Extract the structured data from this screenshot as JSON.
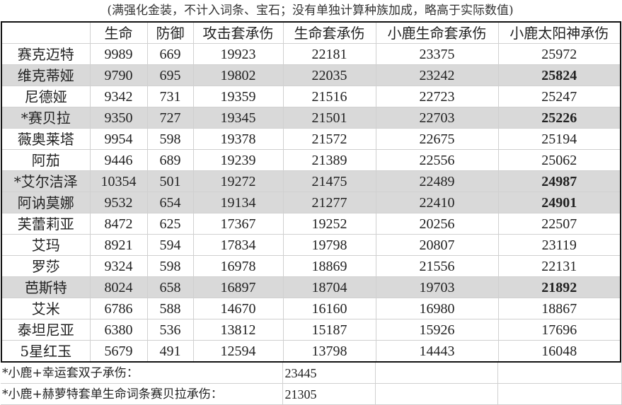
{
  "note": "(满强化金装，不计入词条、宝石；没有单独计算种族加成，略高于实际数值)",
  "headers": [
    "",
    "生命",
    "防御",
    "攻击套承伤",
    "生命套承伤",
    "小鹿生命套承伤",
    "小鹿太阳神承伤"
  ],
  "rows": [
    {
      "name": "赛克迈特",
      "hp": "9989",
      "def": "669",
      "atk_set": "19923",
      "hp_set": "22181",
      "deer_hp_set": "23375",
      "deer_sun": "25972",
      "highlight": false
    },
    {
      "name": "维克蒂娅",
      "hp": "9790",
      "def": "695",
      "atk_set": "19802",
      "hp_set": "22035",
      "deer_hp_set": "23242",
      "deer_sun": "25824",
      "highlight": true
    },
    {
      "name": "尼德娅",
      "hp": "9342",
      "def": "731",
      "atk_set": "19359",
      "hp_set": "21516",
      "deer_hp_set": "22723",
      "deer_sun": "25247",
      "highlight": false
    },
    {
      "name": "*赛贝拉",
      "hp": "9350",
      "def": "727",
      "atk_set": "19345",
      "hp_set": "21501",
      "deer_hp_set": "22703",
      "deer_sun": "25226",
      "highlight": true
    },
    {
      "name": "薇奥莱塔",
      "hp": "9954",
      "def": "598",
      "atk_set": "19378",
      "hp_set": "21572",
      "deer_hp_set": "22675",
      "deer_sun": "25194",
      "highlight": false
    },
    {
      "name": "阿茄",
      "hp": "9446",
      "def": "689",
      "atk_set": "19239",
      "hp_set": "21389",
      "deer_hp_set": "22556",
      "deer_sun": "25062",
      "highlight": false
    },
    {
      "name": "*艾尔洁泽",
      "hp": "10354",
      "def": "501",
      "atk_set": "19272",
      "hp_set": "21475",
      "deer_hp_set": "22489",
      "deer_sun": "24987",
      "highlight": true
    },
    {
      "name": "阿讷莫娜",
      "hp": "9532",
      "def": "654",
      "atk_set": "19134",
      "hp_set": "21277",
      "deer_hp_set": "22410",
      "deer_sun": "24901",
      "highlight": true
    },
    {
      "name": "芙蕾莉亚",
      "hp": "8472",
      "def": "625",
      "atk_set": "17367",
      "hp_set": "19252",
      "deer_hp_set": "20256",
      "deer_sun": "22507",
      "highlight": false
    },
    {
      "name": "艾玛",
      "hp": "8921",
      "def": "594",
      "atk_set": "17834",
      "hp_set": "19798",
      "deer_hp_set": "20807",
      "deer_sun": "23119",
      "highlight": false
    },
    {
      "name": "罗莎",
      "hp": "9324",
      "def": "598",
      "atk_set": "16978",
      "hp_set": "18869",
      "deer_hp_set": "21556",
      "deer_sun": "22131",
      "highlight": false
    },
    {
      "name": "芭斯特",
      "hp": "8024",
      "def": "658",
      "atk_set": "16897",
      "hp_set": "18704",
      "deer_hp_set": "19703",
      "deer_sun": "21892",
      "highlight": true
    },
    {
      "name": "艾米",
      "hp": "6786",
      "def": "588",
      "atk_set": "14670",
      "hp_set": "16160",
      "deer_hp_set": "16980",
      "deer_sun": "18867",
      "highlight": false
    },
    {
      "name": "泰坦尼亚",
      "hp": "6380",
      "def": "536",
      "atk_set": "13812",
      "hp_set": "15187",
      "deer_hp_set": "15926",
      "deer_sun": "17696",
      "highlight": false
    },
    {
      "name": "5星红玉",
      "hp": "5679",
      "def": "491",
      "atk_set": "12594",
      "hp_set": "13798",
      "deer_hp_set": "14443",
      "deer_sun": "16048",
      "highlight": false
    }
  ],
  "footer": [
    {
      "label": "*小鹿+幸运套双子承伤：",
      "value": "23445"
    },
    {
      "label": "*小鹿+赫萝特套单生命词条赛贝拉承伤：",
      "value": "21305"
    }
  ],
  "colors": {
    "highlight_row": "#d9d9d9",
    "border": "#111111",
    "grid": "#d0d0d0"
  }
}
